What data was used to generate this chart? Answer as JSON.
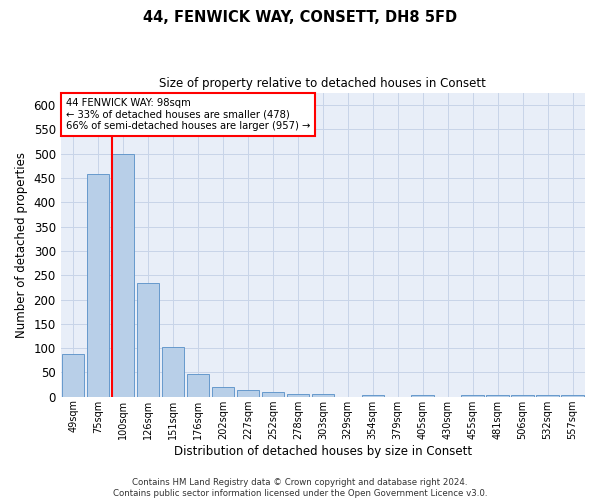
{
  "title": "44, FENWICK WAY, CONSETT, DH8 5FD",
  "subtitle": "Size of property relative to detached houses in Consett",
  "xlabel": "Distribution of detached houses by size in Consett",
  "ylabel": "Number of detached properties",
  "bar_color": "#b8cfe8",
  "bar_edge_color": "#6699cc",
  "all_categories": [
    "49sqm",
    "75sqm",
    "100sqm",
    "126sqm",
    "151sqm",
    "176sqm",
    "202sqm",
    "227sqm",
    "252sqm",
    "278sqm",
    "303sqm",
    "329sqm",
    "354sqm",
    "379sqm",
    "405sqm",
    "430sqm",
    "455sqm",
    "481sqm",
    "506sqm",
    "532sqm",
    "557sqm"
  ],
  "all_values": [
    88,
    458,
    500,
    235,
    103,
    47,
    20,
    13,
    9,
    5,
    5,
    0,
    4,
    0,
    4,
    0,
    4,
    4,
    4,
    4,
    4
  ],
  "annotation_line1": "44 FENWICK WAY: 98sqm",
  "annotation_line2": "← 33% of detached houses are smaller (478)",
  "annotation_line3": "66% of semi-detached houses are larger (957) →",
  "annotation_box_color": "white",
  "annotation_box_edge": "red",
  "vline_color": "red",
  "grid_color": "#c8d4e8",
  "bg_color": "#e8eef8",
  "footer1": "Contains HM Land Registry data © Crown copyright and database right 2024.",
  "footer2": "Contains public sector information licensed under the Open Government Licence v3.0.",
  "ylim": [
    0,
    625
  ],
  "yticks": [
    0,
    50,
    100,
    150,
    200,
    250,
    300,
    350,
    400,
    450,
    500,
    550,
    600
  ],
  "figsize": [
    6.0,
    5.0
  ],
  "dpi": 100
}
